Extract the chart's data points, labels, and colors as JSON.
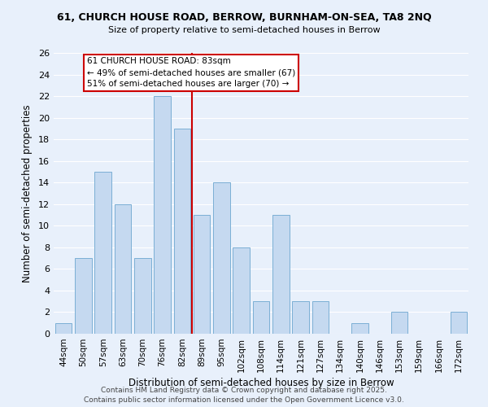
{
  "title1": "61, CHURCH HOUSE ROAD, BERROW, BURNHAM-ON-SEA, TA8 2NQ",
  "title2": "Size of property relative to semi-detached houses in Berrow",
  "xlabel": "Distribution of semi-detached houses by size in Berrow",
  "ylabel": "Number of semi-detached properties",
  "categories": [
    "44sqm",
    "50sqm",
    "57sqm",
    "63sqm",
    "70sqm",
    "76sqm",
    "82sqm",
    "89sqm",
    "95sqm",
    "102sqm",
    "108sqm",
    "114sqm",
    "121sqm",
    "127sqm",
    "134sqm",
    "140sqm",
    "146sqm",
    "153sqm",
    "159sqm",
    "166sqm",
    "172sqm"
  ],
  "values": [
    1,
    7,
    15,
    12,
    7,
    22,
    19,
    11,
    14,
    8,
    3,
    11,
    3,
    3,
    0,
    1,
    0,
    2,
    0,
    0,
    2
  ],
  "bar_color": "#c5d9f0",
  "bar_edge_color": "#7bafd4",
  "highlight_line_color": "#cc0000",
  "annotation_title": "61 CHURCH HOUSE ROAD: 83sqm",
  "annotation_line1": "← 49% of semi-detached houses are smaller (67)",
  "annotation_line2": "51% of semi-detached houses are larger (70) →",
  "annotation_box_edge": "#cc0000",
  "ylim": [
    0,
    26
  ],
  "yticks": [
    0,
    2,
    4,
    6,
    8,
    10,
    12,
    14,
    16,
    18,
    20,
    22,
    24,
    26
  ],
  "footer1": "Contains HM Land Registry data © Crown copyright and database right 2025.",
  "footer2": "Contains public sector information licensed under the Open Government Licence v3.0.",
  "bg_color": "#e8f0fb",
  "grid_color": "#ffffff"
}
